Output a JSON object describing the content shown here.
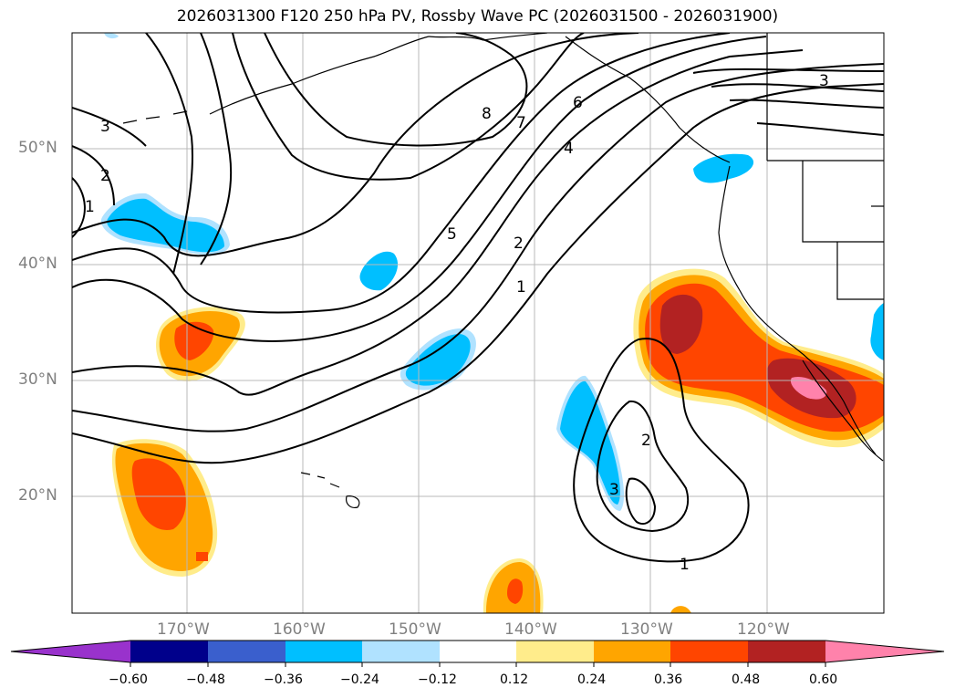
{
  "title": "2026031300 F120 250 hPa PV, Rossby Wave PC (2026031500 - 2026031900)",
  "lat_labels": [
    "50°N",
    "40°N",
    "30°N",
    "20°N"
  ],
  "lon_labels": [
    "170°W",
    "160°W",
    "150°W",
    "140°W",
    "130°W",
    "120°W"
  ],
  "contour_labels": [
    "3",
    "2",
    "1",
    "8",
    "7",
    "6",
    "4",
    "3",
    "5",
    "2",
    "1",
    "2",
    "3",
    "1"
  ],
  "colorbar": {
    "ticks": [
      "−0.60",
      "−0.48",
      "−0.36",
      "−0.24",
      "−0.12",
      "0.12",
      "0.24",
      "0.36",
      "0.48",
      "0.60"
    ],
    "colors": [
      "#9932cc",
      "#00008b",
      "#3a5fcd",
      "#00bfff",
      "#b0e2ff",
      "#ffffff",
      "#ffec8b",
      "#ffa500",
      "#ff4500",
      "#b22222",
      "#ff82ab"
    ]
  }
}
